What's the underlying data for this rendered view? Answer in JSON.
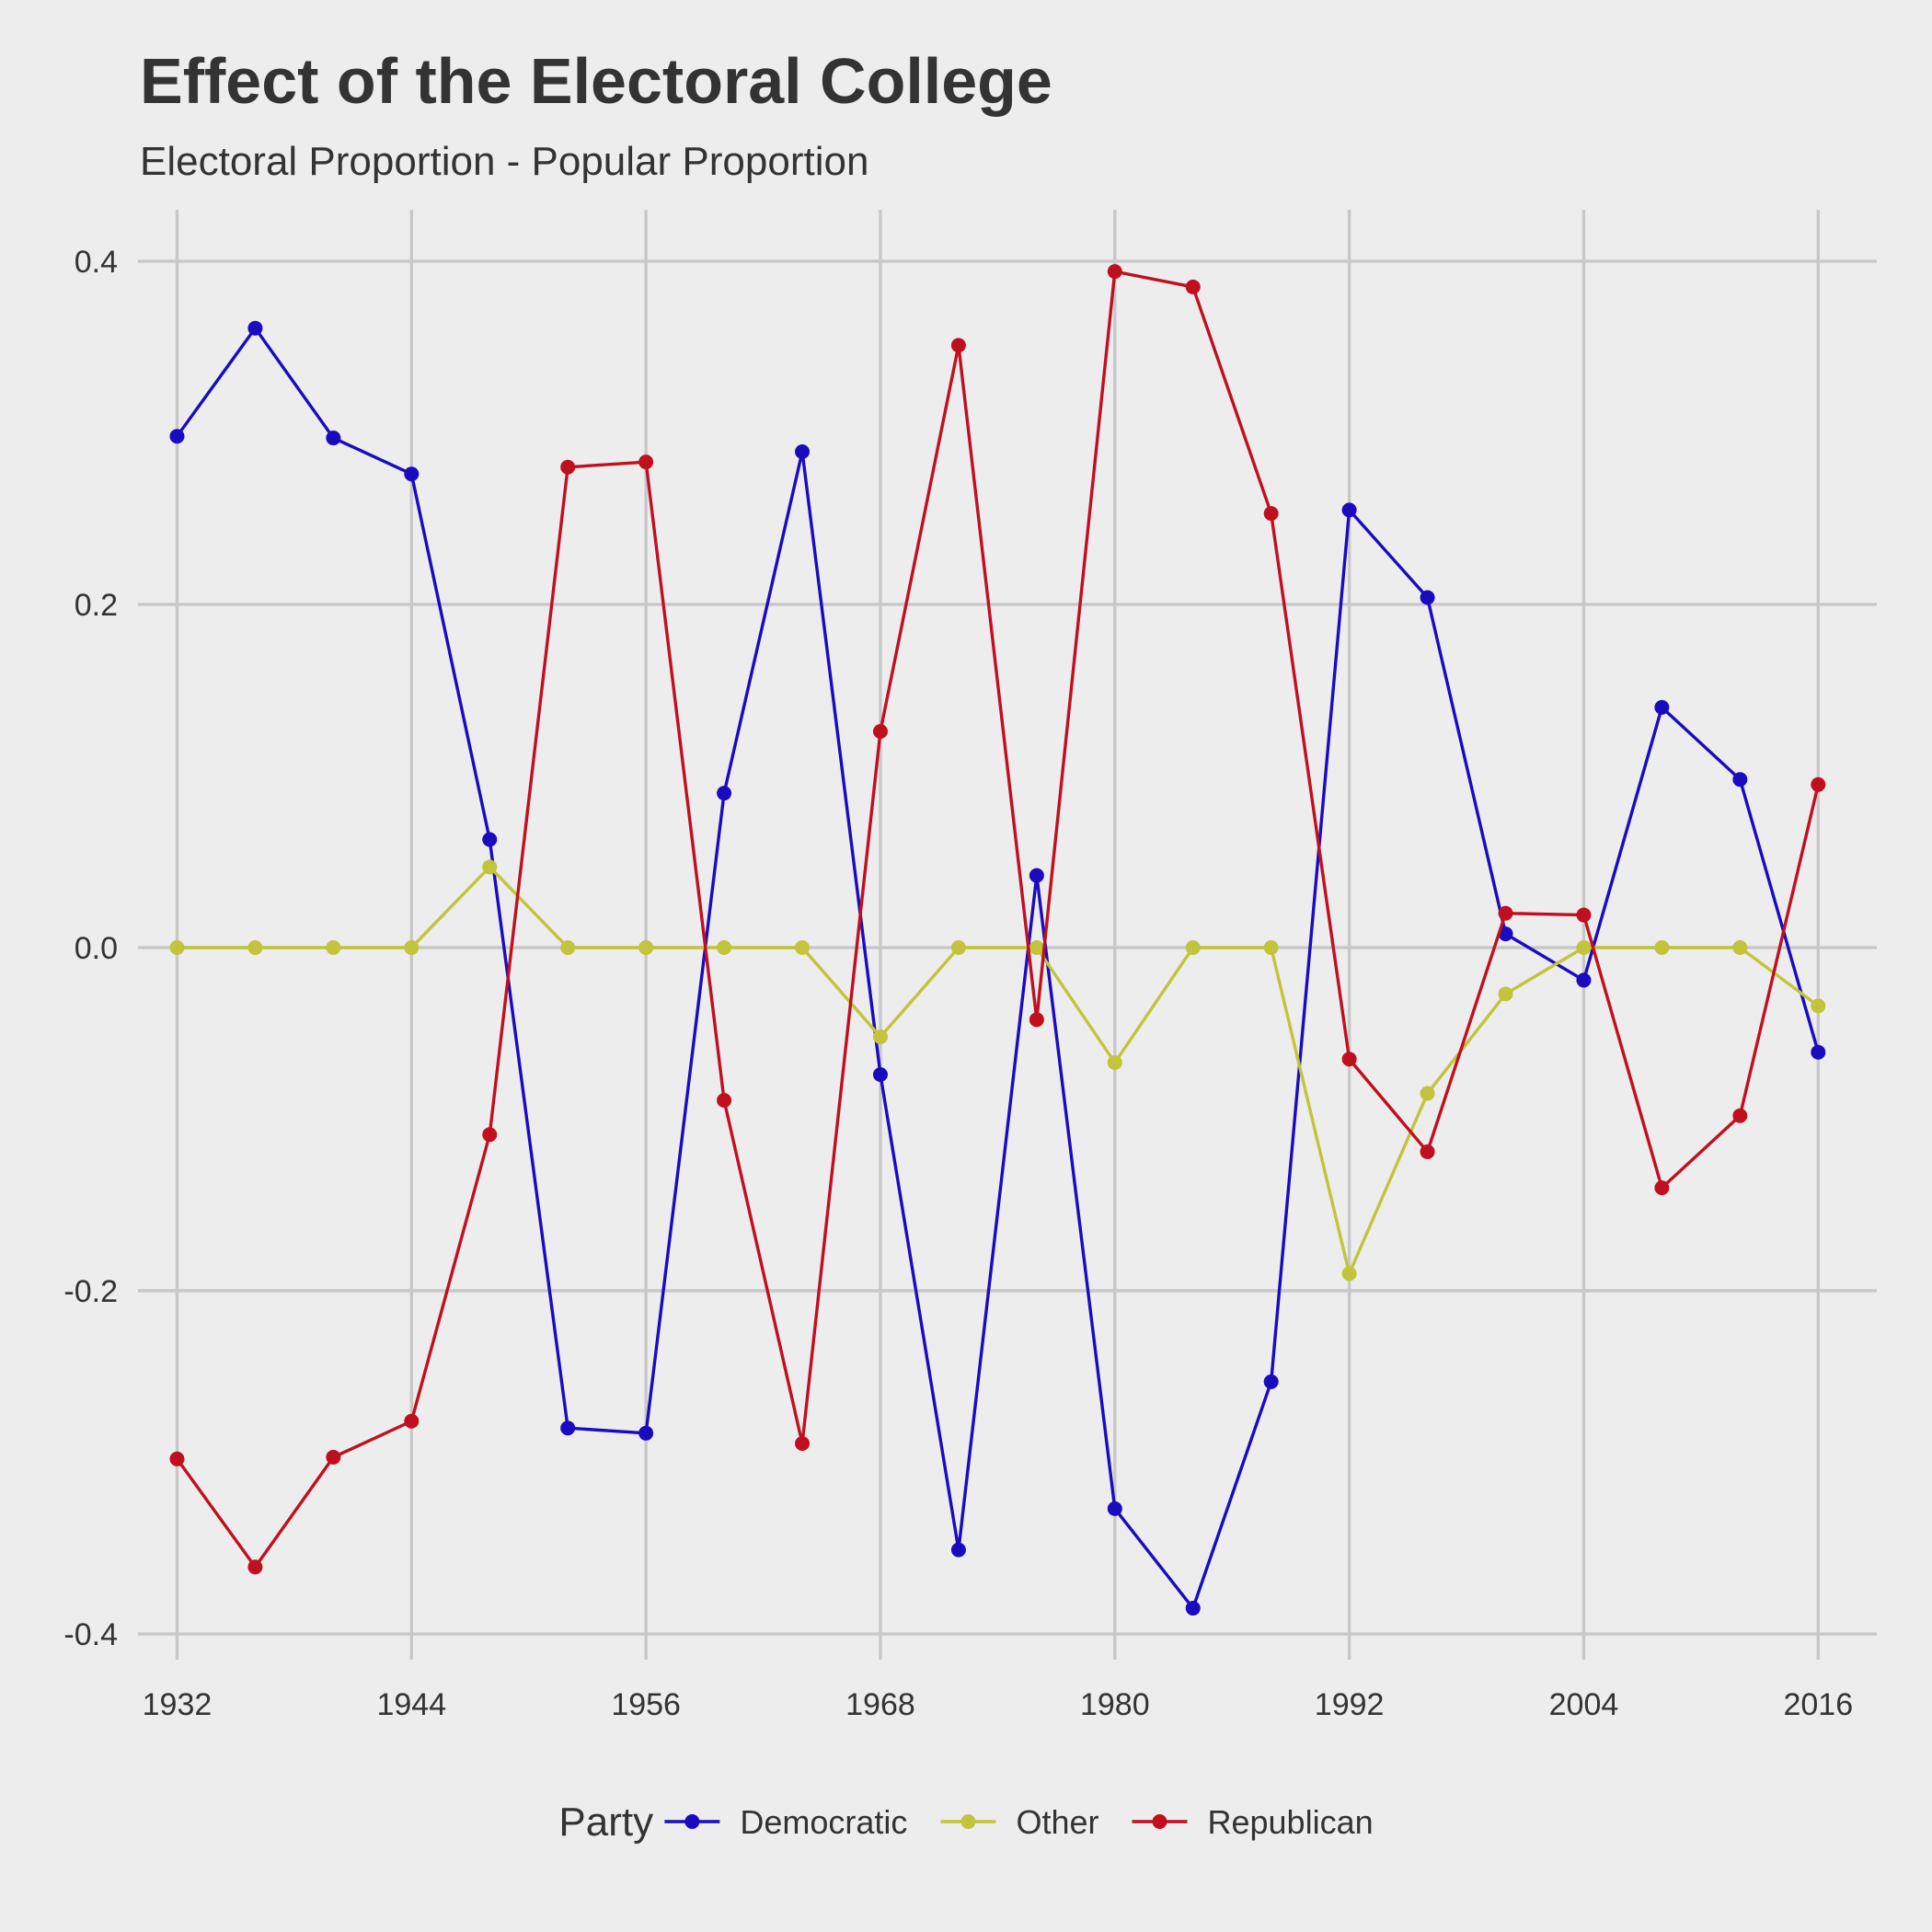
{
  "chart_data": {
    "type": "line",
    "title": "Effect of the Electoral College",
    "subtitle": "Electoral Proportion - Popular Proportion",
    "xlabel": "",
    "ylabel": "",
    "xlim": [
      1930,
      2019
    ],
    "ylim": [
      -0.415,
      0.43
    ],
    "x_ticks": [
      1932,
      1944,
      1956,
      1968,
      1980,
      1992,
      2004,
      2016
    ],
    "x_tick_labels": [
      "1932",
      "1944",
      "1956",
      "1968",
      "1980",
      "1992",
      "2004",
      "2016"
    ],
    "y_ticks": [
      -0.4,
      -0.2,
      0.0,
      0.2,
      0.4
    ],
    "y_tick_labels": [
      "-0.4",
      "-0.2",
      "0.0",
      "0.2",
      "0.4"
    ],
    "x": [
      1932,
      1936,
      1940,
      1944,
      1948,
      1952,
      1956,
      1960,
      1964,
      1968,
      1972,
      1976,
      1980,
      1984,
      1988,
      1992,
      1996,
      2000,
      2004,
      2008,
      2012,
      2016
    ],
    "legend": {
      "title": "Party",
      "position": "bottom"
    },
    "grid": true,
    "series": [
      {
        "name": "Democratic",
        "color": "#1a0bbf",
        "values": [
          0.298,
          0.361,
          0.297,
          0.276,
          0.063,
          -0.28,
          -0.283,
          0.09,
          0.289,
          -0.074,
          -0.351,
          0.042,
          -0.327,
          -0.385,
          -0.253,
          0.255,
          0.204,
          0.008,
          -0.019,
          0.14,
          0.098,
          -0.061
        ]
      },
      {
        "name": "Other",
        "color": "#c2c43b",
        "values": [
          0.0,
          0.0,
          0.0,
          0.0,
          0.047,
          0.0,
          0.0,
          0.0,
          0.0,
          -0.052,
          0.0,
          0.0,
          -0.067,
          0.0,
          0.0,
          -0.19,
          -0.085,
          -0.027,
          0.0,
          0.0,
          0.0,
          -0.034
        ]
      },
      {
        "name": "Republican",
        "color": "#c0101f",
        "values": [
          -0.298,
          -0.361,
          -0.297,
          -0.276,
          -0.109,
          0.28,
          0.283,
          -0.089,
          -0.289,
          0.126,
          0.351,
          -0.042,
          0.394,
          0.385,
          0.253,
          -0.065,
          -0.119,
          0.02,
          0.019,
          -0.14,
          -0.098,
          0.095
        ]
      }
    ]
  }
}
